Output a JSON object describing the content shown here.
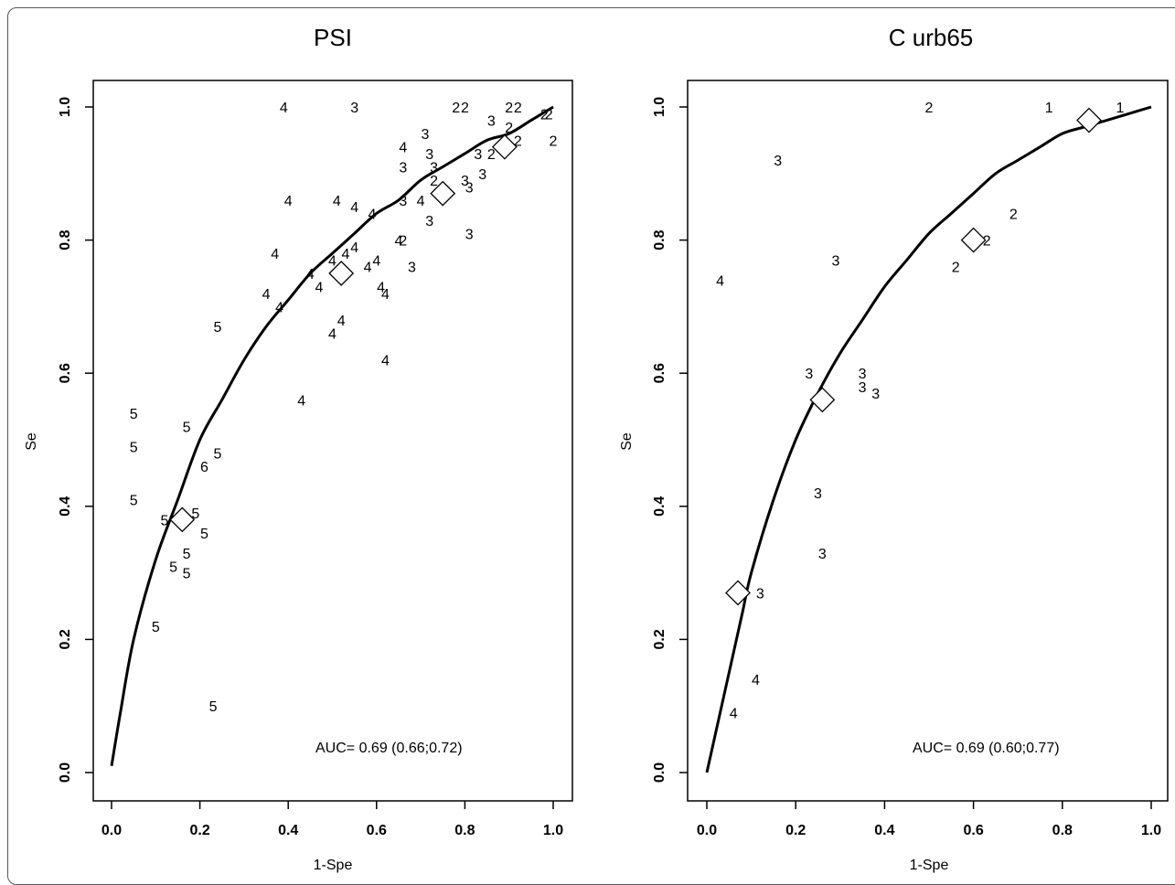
{
  "chart_data": [
    {
      "type": "scatter",
      "title": "PSI",
      "xlabel": "1-Spe",
      "ylabel": "Se",
      "xlim": [
        0,
        1
      ],
      "ylim": [
        0,
        1
      ],
      "x_ticks": [
        "0.0",
        "0.2",
        "0.4",
        "0.6",
        "0.8",
        "1.0"
      ],
      "y_ticks": [
        "0.0",
        "0.2",
        "0.4",
        "0.6",
        "0.8",
        "1.0"
      ],
      "annotation": "AUC= 0.69 (0.66;0.72)",
      "roc_curve": [
        [
          0,
          0.01
        ],
        [
          0.02,
          0.09
        ],
        [
          0.05,
          0.2
        ],
        [
          0.1,
          0.32
        ],
        [
          0.15,
          0.41
        ],
        [
          0.2,
          0.5
        ],
        [
          0.25,
          0.56
        ],
        [
          0.3,
          0.62
        ],
        [
          0.35,
          0.67
        ],
        [
          0.4,
          0.71
        ],
        [
          0.45,
          0.75
        ],
        [
          0.5,
          0.78
        ],
        [
          0.55,
          0.81
        ],
        [
          0.6,
          0.84
        ],
        [
          0.65,
          0.86
        ],
        [
          0.7,
          0.89
        ],
        [
          0.75,
          0.91
        ],
        [
          0.8,
          0.93
        ],
        [
          0.85,
          0.95
        ],
        [
          0.9,
          0.96
        ],
        [
          0.95,
          0.98
        ],
        [
          1.0,
          1.0
        ]
      ],
      "summary_points": [
        [
          0.16,
          0.38
        ],
        [
          0.52,
          0.75
        ],
        [
          0.75,
          0.87
        ],
        [
          0.89,
          0.94
        ]
      ],
      "points": [
        {
          "label": "4",
          "x": 0.39,
          "y": 1.0
        },
        {
          "label": "3",
          "x": 0.55,
          "y": 1.0
        },
        {
          "label": "2",
          "x": 0.78,
          "y": 1.0
        },
        {
          "label": "2",
          "x": 0.8,
          "y": 1.0
        },
        {
          "label": "2",
          "x": 0.9,
          "y": 1.0
        },
        {
          "label": "2",
          "x": 0.92,
          "y": 1.0
        },
        {
          "label": "2",
          "x": 0.98,
          "y": 0.99
        },
        {
          "label": "2",
          "x": 0.99,
          "y": 0.99
        },
        {
          "label": "3",
          "x": 0.86,
          "y": 0.98
        },
        {
          "label": "2",
          "x": 0.9,
          "y": 0.97
        },
        {
          "label": "3",
          "x": 0.71,
          "y": 0.96
        },
        {
          "label": "2",
          "x": 0.92,
          "y": 0.95
        },
        {
          "label": "2",
          "x": 1.0,
          "y": 0.95
        },
        {
          "label": "4",
          "x": 0.66,
          "y": 0.94
        },
        {
          "label": "3",
          "x": 0.72,
          "y": 0.93
        },
        {
          "label": "3",
          "x": 0.83,
          "y": 0.93
        },
        {
          "label": "2",
          "x": 0.86,
          "y": 0.93
        },
        {
          "label": "2",
          "x": 0.88,
          "y": 0.94
        },
        {
          "label": "3",
          "x": 0.66,
          "y": 0.91
        },
        {
          "label": "3",
          "x": 0.73,
          "y": 0.91
        },
        {
          "label": "3",
          "x": 0.84,
          "y": 0.9
        },
        {
          "label": "2",
          "x": 0.73,
          "y": 0.89
        },
        {
          "label": "3",
          "x": 0.8,
          "y": 0.89
        },
        {
          "label": "3",
          "x": 0.81,
          "y": 0.88
        },
        {
          "label": "4",
          "x": 0.4,
          "y": 0.86
        },
        {
          "label": "4",
          "x": 0.51,
          "y": 0.86
        },
        {
          "label": "3",
          "x": 0.66,
          "y": 0.86
        },
        {
          "label": "4",
          "x": 0.7,
          "y": 0.86
        },
        {
          "label": "4",
          "x": 0.55,
          "y": 0.85
        },
        {
          "label": "4",
          "x": 0.59,
          "y": 0.84
        },
        {
          "label": "3",
          "x": 0.72,
          "y": 0.83
        },
        {
          "label": "3",
          "x": 0.81,
          "y": 0.81
        },
        {
          "label": "4",
          "x": 0.65,
          "y": 0.8
        },
        {
          "label": "2",
          "x": 0.66,
          "y": 0.8
        },
        {
          "label": "4",
          "x": 0.55,
          "y": 0.79
        },
        {
          "label": "4",
          "x": 0.53,
          "y": 0.78
        },
        {
          "label": "4",
          "x": 0.37,
          "y": 0.78
        },
        {
          "label": "4",
          "x": 0.6,
          "y": 0.77
        },
        {
          "label": "4",
          "x": 0.5,
          "y": 0.77
        },
        {
          "label": "4",
          "x": 0.58,
          "y": 0.76
        },
        {
          "label": "3",
          "x": 0.68,
          "y": 0.76
        },
        {
          "label": "4",
          "x": 0.45,
          "y": 0.75
        },
        {
          "label": "4",
          "x": 0.61,
          "y": 0.73
        },
        {
          "label": "4",
          "x": 0.47,
          "y": 0.73
        },
        {
          "label": "4",
          "x": 0.35,
          "y": 0.72
        },
        {
          "label": "4",
          "x": 0.62,
          "y": 0.72
        },
        {
          "label": "4",
          "x": 0.38,
          "y": 0.7
        },
        {
          "label": "5",
          "x": 0.24,
          "y": 0.67
        },
        {
          "label": "4",
          "x": 0.52,
          "y": 0.68
        },
        {
          "label": "4",
          "x": 0.5,
          "y": 0.66
        },
        {
          "label": "4",
          "x": 0.62,
          "y": 0.62
        },
        {
          "label": "4",
          "x": 0.43,
          "y": 0.56
        },
        {
          "label": "5",
          "x": 0.05,
          "y": 0.54
        },
        {
          "label": "5",
          "x": 0.17,
          "y": 0.52
        },
        {
          "label": "5",
          "x": 0.05,
          "y": 0.49
        },
        {
          "label": "5",
          "x": 0.24,
          "y": 0.48
        },
        {
          "label": "6",
          "x": 0.21,
          "y": 0.46
        },
        {
          "label": "5",
          "x": 0.05,
          "y": 0.41
        },
        {
          "label": "5",
          "x": 0.12,
          "y": 0.38
        },
        {
          "label": "5",
          "x": 0.19,
          "y": 0.39
        },
        {
          "label": "5",
          "x": 0.21,
          "y": 0.36
        },
        {
          "label": "5",
          "x": 0.17,
          "y": 0.33
        },
        {
          "label": "5",
          "x": 0.14,
          "y": 0.31
        },
        {
          "label": "5",
          "x": 0.17,
          "y": 0.3
        },
        {
          "label": "5",
          "x": 0.1,
          "y": 0.22
        },
        {
          "label": "5",
          "x": 0.23,
          "y": 0.1
        }
      ]
    },
    {
      "type": "scatter",
      "title": "C urb65",
      "xlabel": "1-Spe",
      "ylabel": "Se",
      "xlim": [
        0,
        1
      ],
      "ylim": [
        0,
        1
      ],
      "x_ticks": [
        "0.0",
        "0.2",
        "0.4",
        "0.6",
        "0.8",
        "1.0"
      ],
      "y_ticks": [
        "0.0",
        "0.2",
        "0.4",
        "0.6",
        "0.8",
        "1.0"
      ],
      "annotation": "AUC= 0.69 (0.60;0.77)",
      "roc_curve": [
        [
          0,
          0.0
        ],
        [
          0.02,
          0.06
        ],
        [
          0.05,
          0.15
        ],
        [
          0.08,
          0.24
        ],
        [
          0.1,
          0.3
        ],
        [
          0.15,
          0.41
        ],
        [
          0.2,
          0.5
        ],
        [
          0.25,
          0.57
        ],
        [
          0.3,
          0.63
        ],
        [
          0.35,
          0.68
        ],
        [
          0.4,
          0.73
        ],
        [
          0.45,
          0.77
        ],
        [
          0.5,
          0.81
        ],
        [
          0.55,
          0.84
        ],
        [
          0.6,
          0.87
        ],
        [
          0.65,
          0.9
        ],
        [
          0.7,
          0.92
        ],
        [
          0.75,
          0.94
        ],
        [
          0.8,
          0.96
        ],
        [
          0.85,
          0.97
        ],
        [
          0.9,
          0.98
        ],
        [
          0.95,
          0.99
        ],
        [
          1.0,
          1.0
        ]
      ],
      "summary_points": [
        [
          0.07,
          0.27
        ],
        [
          0.26,
          0.56
        ],
        [
          0.6,
          0.8
        ],
        [
          0.86,
          0.98
        ]
      ],
      "points": [
        {
          "label": "2",
          "x": 0.5,
          "y": 1.0
        },
        {
          "label": "1",
          "x": 0.77,
          "y": 1.0
        },
        {
          "label": "1",
          "x": 0.93,
          "y": 1.0
        },
        {
          "label": "1",
          "x": 0.86,
          "y": 0.98
        },
        {
          "label": "3",
          "x": 0.16,
          "y": 0.92
        },
        {
          "label": "2",
          "x": 0.69,
          "y": 0.84
        },
        {
          "label": "2",
          "x": 0.63,
          "y": 0.8
        },
        {
          "label": "3",
          "x": 0.29,
          "y": 0.77
        },
        {
          "label": "2",
          "x": 0.56,
          "y": 0.76
        },
        {
          "label": "4",
          "x": 0.03,
          "y": 0.74
        },
        {
          "label": "3",
          "x": 0.23,
          "y": 0.6
        },
        {
          "label": "3",
          "x": 0.35,
          "y": 0.6
        },
        {
          "label": "3",
          "x": 0.35,
          "y": 0.58
        },
        {
          "label": "3",
          "x": 0.38,
          "y": 0.57
        },
        {
          "label": "3",
          "x": 0.25,
          "y": 0.42
        },
        {
          "label": "3",
          "x": 0.26,
          "y": 0.33
        },
        {
          "label": "3",
          "x": 0.12,
          "y": 0.27
        },
        {
          "label": "4",
          "x": 0.11,
          "y": 0.14
        },
        {
          "label": "4",
          "x": 0.06,
          "y": 0.09
        }
      ]
    }
  ]
}
